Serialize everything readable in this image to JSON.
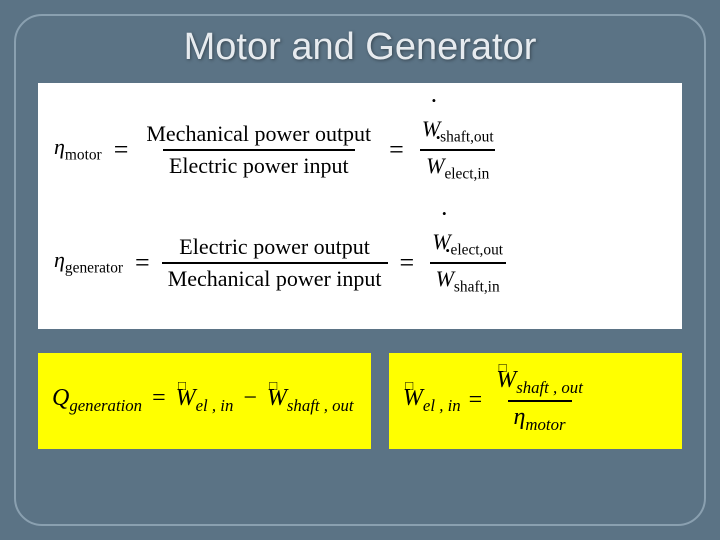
{
  "slide": {
    "title": "Motor and Generator",
    "bg_color": "#5b7385",
    "frame_border_color": "#8aa0b0",
    "title_color": "#e7ebef",
    "title_fontsize": 38
  },
  "panel": {
    "bg_color": "#ffffff",
    "fontsize": 22,
    "motor": {
      "lhs": "η",
      "lhs_sub": "motor",
      "equals": "=",
      "frac1_num": "Mechanical power output",
      "frac1_den": "Electric power input",
      "frac2_num_sym": "W",
      "frac2_num_sub": "shaft,out",
      "frac2_den_sym": "W",
      "frac2_den_sub": "elect,in"
    },
    "generator": {
      "lhs": "η",
      "lhs_sub": "generator",
      "equals": "=",
      "frac1_num": "Electric power output",
      "frac1_den": "Mechanical power input",
      "frac2_num_sym": "W",
      "frac2_num_sub": "elect,out",
      "frac2_den_sym": "W",
      "frac2_den_sub": "shaft,in"
    }
  },
  "box1": {
    "bg_color": "#ffff00",
    "Q": "Q",
    "Q_sub": "generation",
    "eq": "=",
    "W1": "W",
    "W1_sub": "el , in",
    "minus": "−",
    "W2": "W",
    "W2_sub": "shaft , out"
  },
  "box2": {
    "bg_color": "#ffff00",
    "lhs_W": "W",
    "lhs_sub": "el , in",
    "eq": "=",
    "num_W": "W",
    "num_sub": "shaft , out",
    "den_eta": "η",
    "den_sub": "motor"
  }
}
